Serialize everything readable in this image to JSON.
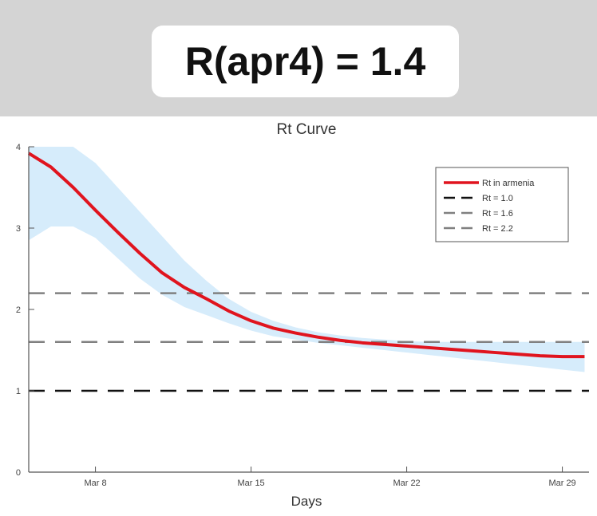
{
  "header": {
    "badge_text": "R(apr4) = 1.4"
  },
  "chart_data": {
    "type": "line",
    "title": "Rt Curve",
    "xlabel": "Days",
    "ylabel": "",
    "x_start_day": 5,
    "x_month": "Mar",
    "xlim_days": [
      5.0,
      30.2
    ],
    "ylim": [
      0,
      4
    ],
    "yticks": [
      "0",
      "1",
      "2",
      "3",
      "4"
    ],
    "xticks": [
      {
        "day": 8,
        "label": "Mar 8"
      },
      {
        "day": 15,
        "label": "Mar 15"
      },
      {
        "day": 22,
        "label": "Mar 22"
      },
      {
        "day": 29,
        "label": "Mar 29"
      }
    ],
    "series": [
      {
        "name": "Rt in armenia",
        "color": "#e0141e",
        "values": [
          3.92,
          3.75,
          3.5,
          3.22,
          2.95,
          2.69,
          2.45,
          2.27,
          2.13,
          1.98,
          1.86,
          1.77,
          1.71,
          1.66,
          1.62,
          1.59,
          1.57,
          1.55,
          1.53,
          1.51,
          1.49,
          1.47,
          1.45,
          1.43,
          1.42,
          1.42
        ],
        "upper": [
          4.5,
          4.4,
          4.2,
          3.8,
          3.5,
          3.2,
          2.9,
          2.6,
          2.35,
          2.13,
          1.97,
          1.86,
          1.78,
          1.72,
          1.68,
          1.65,
          1.63,
          1.61,
          1.6,
          1.6,
          1.6,
          1.6,
          1.6,
          1.6,
          1.6,
          1.6
        ],
        "lower": [
          2.85,
          3.02,
          3.02,
          2.88,
          2.63,
          2.38,
          2.18,
          2.03,
          1.93,
          1.83,
          1.74,
          1.67,
          1.63,
          1.59,
          1.56,
          1.53,
          1.5,
          1.47,
          1.44,
          1.41,
          1.38,
          1.35,
          1.32,
          1.29,
          1.26,
          1.23
        ],
        "band_color": "#d6ecfb"
      }
    ],
    "reference_lines": [
      {
        "name": "Rt = 1.0",
        "value": 1.0,
        "color": "#111111"
      },
      {
        "name": "Rt = 1.6",
        "value": 1.6,
        "color": "#808080"
      },
      {
        "name": "Rt = 2.2",
        "value": 2.2,
        "color": "#808080"
      }
    ],
    "legend_position": "top-right"
  }
}
